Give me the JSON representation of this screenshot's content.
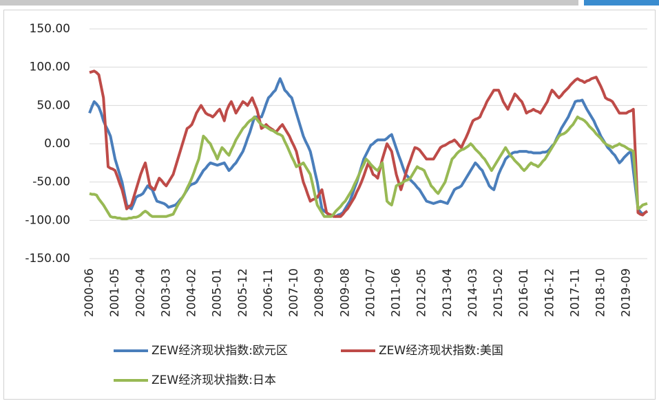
{
  "chart_data": {
    "type": "line",
    "categories": [
      "2000-06",
      null,
      null,
      null,
      null,
      null,
      null,
      null,
      null,
      null,
      null,
      "2001-05",
      null,
      null,
      null,
      null,
      null,
      null,
      null,
      null,
      null,
      null,
      "2002-04",
      null,
      null,
      null,
      null,
      null,
      null,
      null,
      null,
      null,
      null,
      "2003-03",
      null,
      null,
      null,
      null,
      null,
      null,
      null,
      null,
      null,
      null,
      "2004-02",
      null,
      null,
      null,
      null,
      null,
      null,
      null,
      null,
      null,
      null,
      "2005-01",
      null,
      null,
      null,
      null,
      null,
      null,
      null,
      null,
      null,
      null,
      "2005-12",
      null,
      null,
      null,
      null,
      null,
      null,
      null,
      null,
      null,
      null,
      "2006-11",
      null,
      null,
      null,
      null,
      null,
      null,
      null,
      null,
      null,
      null,
      "2007-10",
      null,
      null,
      null,
      null,
      null,
      null,
      null,
      null,
      null,
      null,
      "2008-09",
      null,
      null,
      null,
      null,
      null,
      null,
      null,
      null,
      null,
      null,
      "2009-08",
      null,
      null,
      null,
      null,
      null,
      null,
      null,
      null,
      null,
      null,
      "2010-07",
      null,
      null,
      null,
      null,
      null,
      null,
      null,
      null,
      null,
      null,
      "2011-06",
      null,
      null,
      null,
      null,
      null,
      null,
      null,
      null,
      null,
      null,
      "2012-05",
      null,
      null,
      null,
      null,
      null,
      null,
      null,
      null,
      null,
      null,
      "2013-04",
      null,
      null,
      null,
      null,
      null,
      null,
      null,
      null,
      null,
      null,
      "2014-03",
      null,
      null,
      null,
      null,
      null,
      null,
      null,
      null,
      null,
      null,
      "2015-02",
      null,
      null,
      null,
      null,
      null,
      null,
      null,
      null,
      null,
      null,
      "2016-01",
      null,
      null,
      null,
      null,
      null,
      null,
      null,
      null,
      null,
      null,
      "2016-12",
      null,
      null,
      null,
      null,
      null,
      null,
      null,
      null,
      null,
      null,
      "2017-11",
      null,
      null,
      null,
      null,
      null,
      null,
      null,
      null,
      null,
      null,
      "2018-10",
      null,
      null,
      null,
      null,
      null,
      null,
      null,
      null,
      null,
      null,
      "2019-09",
      null,
      null,
      null,
      null,
      null,
      null,
      null,
      null,
      null
    ],
    "series": [
      {
        "name": "ZEW经济现状指数:欧元区",
        "color": "#4a7ebb",
        "values": [
          40,
          48,
          55,
          52,
          48,
          40,
          30,
          23,
          17,
          10,
          -5,
          -20,
          -30,
          -40,
          -50,
          -65,
          -80,
          -83,
          -85,
          -78,
          -70,
          -68,
          -67,
          -65,
          -60,
          -55,
          -58,
          -60,
          -68,
          -75,
          -76,
          -77,
          -78,
          -80,
          -83,
          -82,
          -81,
          -80,
          -77,
          -73,
          -70,
          -65,
          -60,
          -55,
          -53,
          -52,
          -50,
          -45,
          -40,
          -35,
          -32,
          -28,
          -25,
          -26,
          -27,
          -28,
          -27,
          -26,
          -25,
          -30,
          -35,
          -32,
          -28,
          -25,
          -20,
          -15,
          -10,
          -2,
          7,
          15,
          25,
          35,
          35,
          35,
          35,
          43,
          52,
          60,
          63,
          67,
          70,
          78,
          85,
          78,
          70,
          67,
          63,
          60,
          50,
          40,
          30,
          20,
          10,
          3,
          -3,
          -10,
          -23,
          -37,
          -50,
          -68,
          -85,
          -88,
          -90,
          -93,
          -94,
          -94,
          -95,
          -93,
          -92,
          -90,
          -85,
          -80,
          -75,
          -67,
          -58,
          -50,
          -40,
          -30,
          -20,
          -14,
          -8,
          -2,
          0,
          3,
          5,
          5,
          5,
          5,
          7,
          10,
          12,
          3,
          -6,
          -15,
          -23,
          -32,
          -40,
          -43,
          -47,
          -50,
          -53,
          -57,
          -60,
          -65,
          -70,
          -75,
          -76,
          -77,
          -78,
          -77,
          -76,
          -75,
          -76,
          -77,
          -78,
          -72,
          -66,
          -60,
          -58,
          -57,
          -55,
          -50,
          -45,
          -40,
          -35,
          -30,
          -25,
          -28,
          -32,
          -35,
          -42,
          -48,
          -55,
          -58,
          -60,
          -50,
          -40,
          -33,
          -27,
          -20,
          -17,
          -15,
          -12,
          -11,
          -11,
          -10,
          -10,
          -10,
          -10,
          -11,
          -11,
          -12,
          -12,
          -12,
          -12,
          -11,
          -11,
          -10,
          -7,
          -3,
          0,
          7,
          13,
          20,
          25,
          30,
          35,
          42,
          48,
          55,
          56,
          56,
          57,
          51,
          45,
          40,
          35,
          30,
          23,
          17,
          10,
          5,
          0,
          -5,
          -8,
          -12,
          -15,
          -20,
          -25,
          -22,
          -18,
          -15,
          -12,
          -10,
          -35,
          -60,
          -85,
          -89,
          -92,
          -90,
          -88
        ]
      },
      {
        "name": "ZEW经济现状指数:美国",
        "color": "#be4b48",
        "values": [
          93,
          94,
          95,
          93,
          90,
          75,
          60,
          15,
          -30,
          -32,
          -33,
          -35,
          -43,
          -52,
          -60,
          -72,
          -85,
          -82,
          -80,
          -70,
          -60,
          -50,
          -40,
          -32,
          -25,
          -40,
          -55,
          -58,
          -60,
          -52,
          -45,
          -48,
          -52,
          -55,
          -50,
          -45,
          -40,
          -30,
          -20,
          -10,
          0,
          10,
          20,
          22,
          25,
          32,
          40,
          45,
          50,
          45,
          40,
          38,
          37,
          35,
          38,
          42,
          45,
          38,
          30,
          43,
          50,
          55,
          48,
          40,
          45,
          50,
          55,
          53,
          50,
          55,
          60,
          52,
          45,
          33,
          20,
          22,
          25,
          22,
          20,
          18,
          15,
          18,
          22,
          25,
          20,
          15,
          10,
          3,
          -3,
          -10,
          -23,
          -37,
          -50,
          -58,
          -67,
          -75,
          -73,
          -72,
          -70,
          -65,
          -60,
          -75,
          -90,
          -92,
          -93,
          -95,
          -95,
          -95,
          -95,
          -92,
          -88,
          -85,
          -80,
          -75,
          -70,
          -63,
          -57,
          -50,
          -42,
          -33,
          -25,
          -32,
          -40,
          -42,
          -45,
          -32,
          -20,
          -10,
          0,
          -5,
          -10,
          -25,
          -40,
          -50,
          -60,
          -50,
          -40,
          -30,
          -22,
          -13,
          -5,
          -6,
          -8,
          -12,
          -16,
          -20,
          -20,
          -20,
          -20,
          -15,
          -10,
          -5,
          -3,
          -2,
          0,
          2,
          3,
          5,
          2,
          -2,
          -5,
          2,
          8,
          15,
          23,
          30,
          32,
          33,
          35,
          42,
          48,
          55,
          60,
          65,
          70,
          70,
          70,
          63,
          55,
          50,
          45,
          52,
          58,
          65,
          62,
          58,
          55,
          48,
          40,
          42,
          43,
          45,
          43,
          42,
          40,
          45,
          50,
          55,
          63,
          70,
          67,
          63,
          60,
          63,
          67,
          70,
          73,
          77,
          80,
          83,
          85,
          83,
          82,
          80,
          82,
          83,
          85,
          86,
          87,
          81,
          75,
          68,
          60,
          58,
          57,
          55,
          50,
          45,
          40,
          40,
          40,
          40,
          42,
          43,
          45,
          -22,
          -90,
          -92,
          -93,
          -90,
          -88
        ]
      },
      {
        "name": "ZEW经济现状指数:日本",
        "color": "#98b954",
        "values": [
          -65,
          -66,
          -66,
          -67,
          -72,
          -76,
          -80,
          -85,
          -90,
          -95,
          -96,
          -96,
          -97,
          -97,
          -98,
          -98,
          -98,
          -97,
          -97,
          -96,
          -96,
          -95,
          -93,
          -90,
          -88,
          -90,
          -93,
          -95,
          -95,
          -95,
          -95,
          -95,
          -95,
          -95,
          -94,
          -93,
          -92,
          -86,
          -80,
          -75,
          -70,
          -65,
          -58,
          -52,
          -45,
          -37,
          -28,
          -20,
          -5,
          10,
          7,
          3,
          0,
          -7,
          -13,
          -20,
          -12,
          -5,
          -8,
          -12,
          -15,
          -8,
          -2,
          5,
          10,
          15,
          20,
          23,
          27,
          30,
          32,
          35,
          32,
          28,
          25,
          23,
          22,
          20,
          18,
          17,
          15,
          13,
          12,
          10,
          3,
          -3,
          -10,
          -17,
          -23,
          -30,
          -28,
          -27,
          -25,
          -30,
          -35,
          -40,
          -53,
          -67,
          -80,
          -85,
          -90,
          -95,
          -95,
          -95,
          -95,
          -92,
          -88,
          -85,
          -82,
          -78,
          -75,
          -70,
          -65,
          -60,
          -53,
          -47,
          -40,
          -33,
          -27,
          -20,
          -23,
          -27,
          -30,
          -33,
          -35,
          -30,
          -25,
          -50,
          -75,
          -78,
          -80,
          -68,
          -55,
          -53,
          -52,
          -50,
          -48,
          -47,
          -45,
          -40,
          -35,
          -30,
          -32,
          -33,
          -35,
          -42,
          -48,
          -55,
          -58,
          -62,
          -65,
          -60,
          -55,
          -50,
          -40,
          -30,
          -20,
          -17,
          -13,
          -10,
          -8,
          -7,
          -5,
          -3,
          0,
          -3,
          -7,
          -10,
          -13,
          -17,
          -20,
          -25,
          -30,
          -35,
          -30,
          -25,
          -20,
          -15,
          -10,
          -5,
          -10,
          -15,
          -18,
          -22,
          -25,
          -28,
          -32,
          -35,
          -32,
          -28,
          -25,
          -27,
          -28,
          -30,
          -27,
          -23,
          -20,
          -15,
          -10,
          -5,
          0,
          5,
          10,
          12,
          13,
          15,
          18,
          22,
          25,
          30,
          35,
          33,
          32,
          30,
          27,
          23,
          20,
          17,
          13,
          10,
          7,
          3,
          0,
          -2,
          -3,
          -5,
          -3,
          -2,
          0,
          -2,
          -3,
          -5,
          -7,
          -8,
          -10,
          -48,
          -85,
          -83,
          -80,
          -79,
          -78
        ]
      }
    ],
    "ylim": [
      -150,
      150
    ],
    "yticks": [
      {
        "value": -150,
        "label": "-150.00"
      },
      {
        "value": -100,
        "label": "-100.00"
      },
      {
        "value": -50,
        "label": "-50.00"
      },
      {
        "value": 0,
        "label": "0.00"
      },
      {
        "value": 50,
        "label": "50.00"
      },
      {
        "value": 100,
        "label": "100.00"
      },
      {
        "value": 150,
        "label": "150.00"
      }
    ],
    "grid": true,
    "legend": "bottom"
  }
}
